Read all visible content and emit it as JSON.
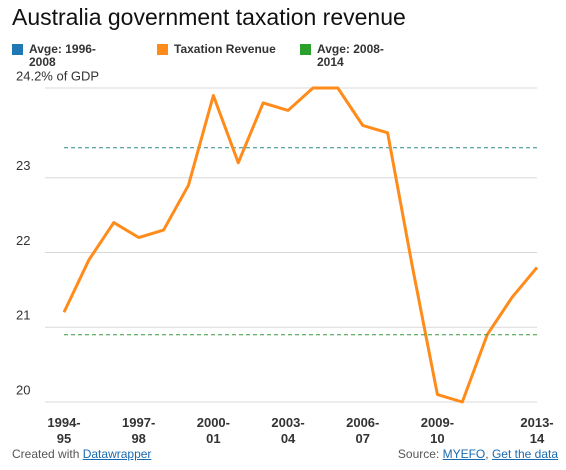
{
  "chart_data": {
    "type": "line",
    "title": "Australia government taxation revenue",
    "categories": [
      "1994-95",
      null,
      null,
      "1997-98",
      null,
      null,
      "2000-01",
      null,
      null,
      "2003-04",
      null,
      null,
      "2006-07",
      null,
      null,
      "2009-10",
      null,
      null,
      null,
      "2013-14"
    ],
    "series": [
      {
        "name": "Avge: 1996-2008",
        "color": "#1f77b4",
        "line_color": "#2a8a8a",
        "value": 23.4
      },
      {
        "name": "Taxation Revenue",
        "color": "#ff8c1a",
        "values": [
          21.2,
          21.9,
          22.4,
          22.2,
          22.3,
          22.9,
          24.1,
          23.2,
          24.0,
          23.9,
          24.2,
          24.2,
          23.7,
          23.6,
          21.8,
          20.1,
          20.0,
          20.9,
          21.4,
          21.8
        ]
      },
      {
        "name": "Avge: 2008-2014",
        "color": "#2ca02c",
        "line_color": "#3a9a3a",
        "value": 20.9
      }
    ],
    "ylim": [
      20,
      24.2
    ],
    "yticks": [
      20,
      21,
      22,
      23,
      {
        "value": 24.2,
        "label": "24.2% of GDP"
      }
    ],
    "grid": true,
    "footer": {
      "created": "Created with",
      "tool": "Datawrapper",
      "source_label": "Source:",
      "source": "MYEFO",
      "separator": ",",
      "get_data": "Get the data"
    }
  }
}
